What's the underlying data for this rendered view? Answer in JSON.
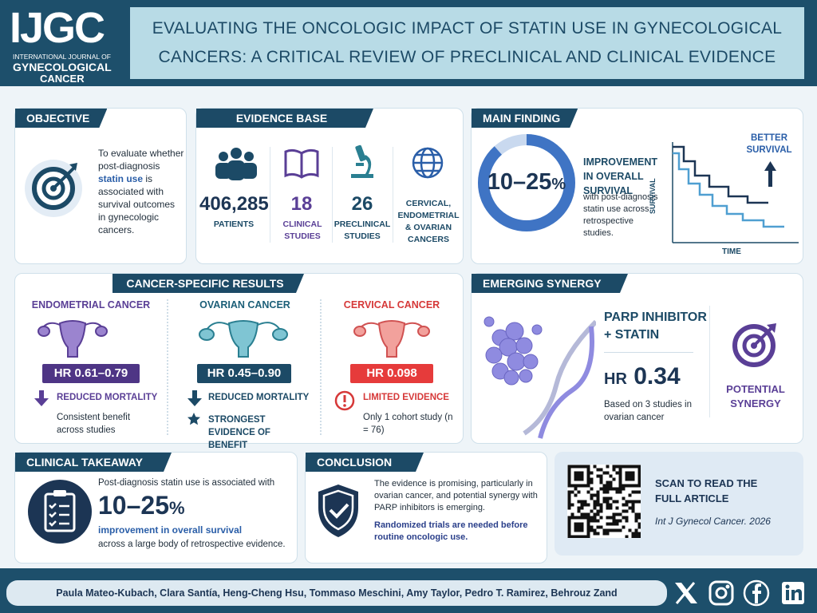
{
  "header": {
    "logo": "IJGC",
    "journal_line1": "INTERNATIONAL JOURNAL OF",
    "journal_line2": "GYNECOLOGICAL",
    "journal_line3": "CANCER",
    "title": "EVALUATING THE ONCOLOGIC IMPACT OF STATIN USE IN GYNECOLOGICAL CANCERS: A CRITICAL REVIEW OF PRECLINICAL AND CLINICAL EVIDENCE"
  },
  "objective": {
    "heading": "OBJECTIVE",
    "text_before": "To evaluate whether post-diagnosis",
    "highlight": "statin use",
    "text_after": "is associated with survival outcomes in gynecologic cancers."
  },
  "evidence_base": {
    "heading": "EVIDENCE BASE",
    "items": [
      {
        "value": "406,285",
        "label": "PATIENTS"
      },
      {
        "value": "18",
        "label": "CLINICAL STUDIES"
      },
      {
        "value": "26",
        "label": "PRECLINICAL STUDIES"
      },
      {
        "label": "CERVICAL, ENDOMETRIAL & OVARIAN CANCERS"
      }
    ]
  },
  "main_finding": {
    "heading": "MAIN FINDING",
    "range": "10–25",
    "unit": "%",
    "headline": "IMPROVEMENT IN OVERALL SURVIVAL",
    "text": "with post-diagnosis statin use across retrospective studies.",
    "chart_label": "BETTER SURVIVAL",
    "y_axis": "SURVIVAL",
    "x_axis": "TIME"
  },
  "cancer_results": {
    "heading": "CANCER-SPECIFIC RESULTS",
    "cancers": [
      {
        "name": "ENDOMETRIAL CANCER",
        "hr": "HR 0.61–0.79",
        "finding": "REDUCED MORTALITY",
        "detail": "Consistent benefit across studies"
      },
      {
        "name": "OVARIAN CANCER",
        "hr": "HR 0.45–0.90",
        "finding": "REDUCED MORTALITY",
        "detail": "STRONGEST EVIDENCE OF BENEFIT"
      },
      {
        "name": "CERVICAL CANCER",
        "hr": "HR 0.098",
        "finding": "LIMITED EVIDENCE",
        "detail": "Only 1 cohort study (n = 76)"
      }
    ]
  },
  "synergy": {
    "heading": "EMERGING SYNERGY",
    "combo": "PARP INHIBITOR + STATIN",
    "hr_label": "HR",
    "hr_value": "0.34",
    "basis": "Based on 3 studies in ovarian cancer",
    "result": "POTENTIAL SYNERGY"
  },
  "takeaway": {
    "heading": "CLINICAL TAKEAWAY",
    "lead": "Post-diagnosis statin use is associated with",
    "range": "10–25",
    "unit": "%",
    "headline": "improvement in overall survival",
    "tail": "across a large body of retrospective evidence."
  },
  "conclusion": {
    "heading": "CONCLUSION",
    "text": "The evidence is promising, particularly in ovarian cancer, and potential synergy with PARP inhibitors is emerging.",
    "emphasis": "Randomized trials are needed before routine oncologic use."
  },
  "qr": {
    "cta": "SCAN TO READ THE FULL ARTICLE",
    "citation": "Int J Gynecol Cancer. 2026"
  },
  "footer": {
    "authors": "Paula Mateo-Kubach, Clara Santía, Heng-Cheng Hsu, Tommaso Meschini, Amy Taylor, Pedro T. Ramirez, Behrouz Zand"
  }
}
